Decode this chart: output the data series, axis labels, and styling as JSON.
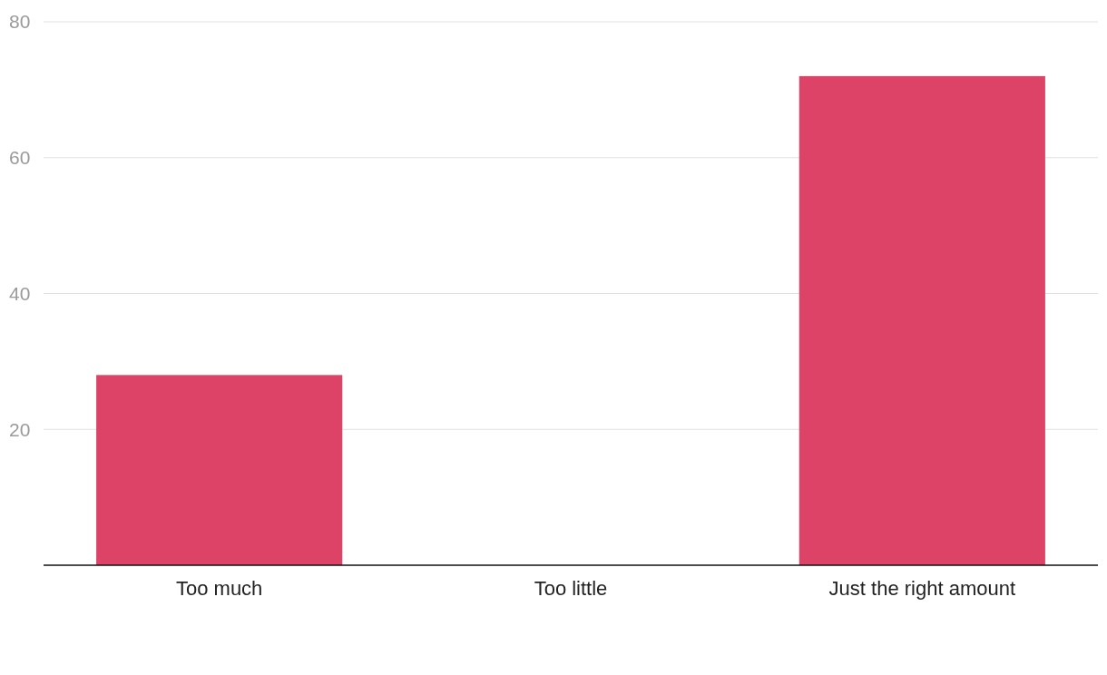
{
  "chart_data": {
    "type": "bar",
    "categories": [
      "Too much",
      "Too little",
      "Just the right amount"
    ],
    "values": [
      28,
      0,
      72
    ],
    "color": "#dc4366",
    "ylim": [
      0,
      80
    ],
    "yticks": [
      20,
      40,
      60,
      80
    ],
    "grid": "y"
  }
}
